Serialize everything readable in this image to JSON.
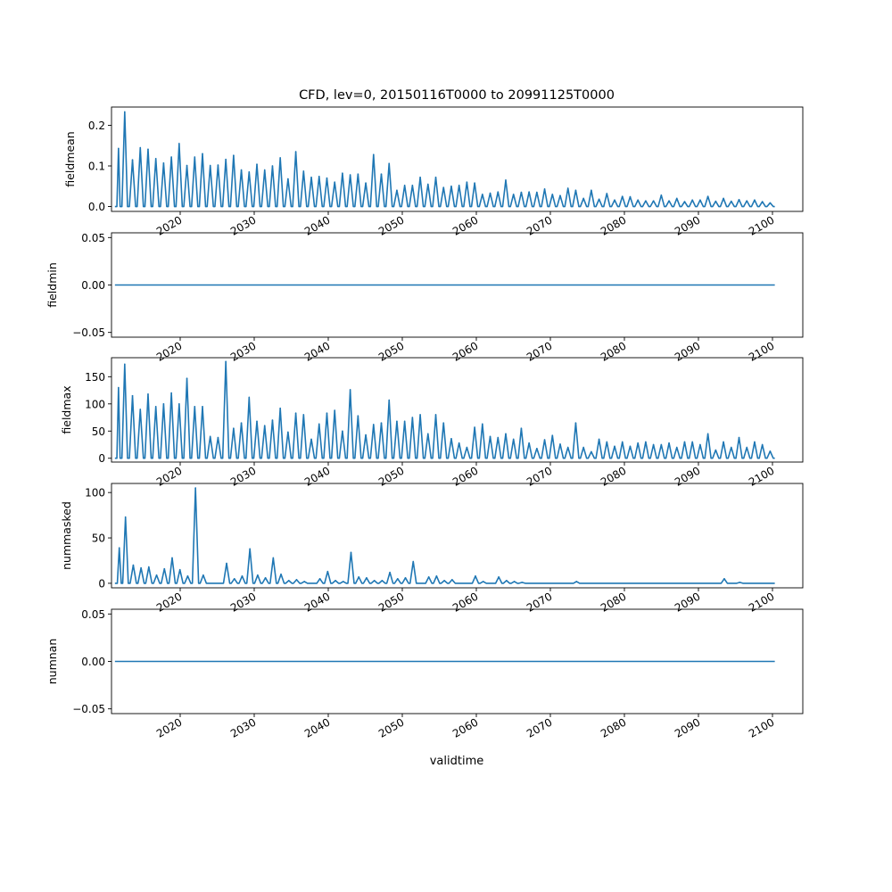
{
  "title": "CFD, lev=0, 20150116T0000 to 20991125T0000",
  "xlabel": "validtime",
  "line_color": "#1f77b4",
  "chart_data": [
    {
      "type": "line",
      "ylabel": "fieldmean",
      "xlim": [
        2014.6,
        2103.5
      ],
      "ylim": [
        -0.012,
        0.245
      ],
      "yticks": [
        0.0,
        0.1,
        0.2
      ],
      "ytick_labels": [
        "0.0",
        "0.1",
        "0.2"
      ],
      "xtick_labels": [
        "2020",
        "2030",
        "2040",
        "2050",
        "2060",
        "2070",
        "2080",
        "2090",
        "2100"
      ],
      "x_start": 2015.04,
      "x_end": 2099.9,
      "baseline": 0.0,
      "peaks": [
        {
          "x": 2015.5,
          "y": 0.143
        },
        {
          "x": 2016.3,
          "y": 0.233
        },
        {
          "x": 2017.3,
          "y": 0.115
        },
        {
          "x": 2018.3,
          "y": 0.145
        },
        {
          "x": 2019.3,
          "y": 0.141
        },
        {
          "x": 2020.3,
          "y": 0.118
        },
        {
          "x": 2021.3,
          "y": 0.107
        },
        {
          "x": 2022.3,
          "y": 0.122
        },
        {
          "x": 2023.3,
          "y": 0.155
        },
        {
          "x": 2024.3,
          "y": 0.101
        },
        {
          "x": 2025.3,
          "y": 0.122
        },
        {
          "x": 2026.3,
          "y": 0.13
        },
        {
          "x": 2027.3,
          "y": 0.101
        },
        {
          "x": 2028.3,
          "y": 0.102
        },
        {
          "x": 2029.3,
          "y": 0.116
        },
        {
          "x": 2030.3,
          "y": 0.126
        },
        {
          "x": 2031.3,
          "y": 0.09
        },
        {
          "x": 2032.3,
          "y": 0.085
        },
        {
          "x": 2033.3,
          "y": 0.104
        },
        {
          "x": 2034.3,
          "y": 0.09
        },
        {
          "x": 2035.3,
          "y": 0.1
        },
        {
          "x": 2036.3,
          "y": 0.12
        },
        {
          "x": 2037.3,
          "y": 0.068
        },
        {
          "x": 2038.3,
          "y": 0.135
        },
        {
          "x": 2039.3,
          "y": 0.087
        },
        {
          "x": 2040.3,
          "y": 0.072
        },
        {
          "x": 2041.3,
          "y": 0.074
        },
        {
          "x": 2042.3,
          "y": 0.07
        },
        {
          "x": 2043.3,
          "y": 0.06
        },
        {
          "x": 2044.3,
          "y": 0.082
        },
        {
          "x": 2045.3,
          "y": 0.078
        },
        {
          "x": 2046.3,
          "y": 0.08
        },
        {
          "x": 2047.3,
          "y": 0.058
        },
        {
          "x": 2048.3,
          "y": 0.128
        },
        {
          "x": 2049.3,
          "y": 0.08
        },
        {
          "x": 2050.3,
          "y": 0.106
        },
        {
          "x": 2051.3,
          "y": 0.04
        },
        {
          "x": 2052.3,
          "y": 0.052
        },
        {
          "x": 2053.3,
          "y": 0.052
        },
        {
          "x": 2054.3,
          "y": 0.072
        },
        {
          "x": 2055.3,
          "y": 0.055
        },
        {
          "x": 2056.3,
          "y": 0.072
        },
        {
          "x": 2057.3,
          "y": 0.047
        },
        {
          "x": 2058.3,
          "y": 0.05
        },
        {
          "x": 2059.3,
          "y": 0.052
        },
        {
          "x": 2060.3,
          "y": 0.06
        },
        {
          "x": 2061.3,
          "y": 0.058
        },
        {
          "x": 2062.3,
          "y": 0.03
        },
        {
          "x": 2063.3,
          "y": 0.033
        },
        {
          "x": 2064.3,
          "y": 0.036
        },
        {
          "x": 2065.3,
          "y": 0.065
        },
        {
          "x": 2066.3,
          "y": 0.03
        },
        {
          "x": 2067.3,
          "y": 0.035
        },
        {
          "x": 2068.3,
          "y": 0.036
        },
        {
          "x": 2069.3,
          "y": 0.035
        },
        {
          "x": 2070.3,
          "y": 0.043
        },
        {
          "x": 2071.3,
          "y": 0.03
        },
        {
          "x": 2072.3,
          "y": 0.027
        },
        {
          "x": 2073.3,
          "y": 0.045
        },
        {
          "x": 2074.3,
          "y": 0.04
        },
        {
          "x": 2075.3,
          "y": 0.02
        },
        {
          "x": 2076.3,
          "y": 0.04
        },
        {
          "x": 2077.3,
          "y": 0.018
        },
        {
          "x": 2078.3,
          "y": 0.032
        },
        {
          "x": 2079.3,
          "y": 0.016
        },
        {
          "x": 2080.3,
          "y": 0.025
        },
        {
          "x": 2081.3,
          "y": 0.024
        },
        {
          "x": 2082.3,
          "y": 0.016
        },
        {
          "x": 2083.3,
          "y": 0.014
        },
        {
          "x": 2084.3,
          "y": 0.014
        },
        {
          "x": 2085.3,
          "y": 0.028
        },
        {
          "x": 2086.3,
          "y": 0.014
        },
        {
          "x": 2087.3,
          "y": 0.02
        },
        {
          "x": 2088.3,
          "y": 0.012
        },
        {
          "x": 2089.3,
          "y": 0.016
        },
        {
          "x": 2090.3,
          "y": 0.016
        },
        {
          "x": 2091.3,
          "y": 0.025
        },
        {
          "x": 2092.3,
          "y": 0.013
        },
        {
          "x": 2093.3,
          "y": 0.02
        },
        {
          "x": 2094.3,
          "y": 0.013
        },
        {
          "x": 2095.3,
          "y": 0.017
        },
        {
          "x": 2096.3,
          "y": 0.014
        },
        {
          "x": 2097.3,
          "y": 0.016
        },
        {
          "x": 2098.3,
          "y": 0.012
        },
        {
          "x": 2099.3,
          "y": 0.009
        }
      ]
    },
    {
      "type": "line",
      "ylabel": "fieldmin",
      "xlim": [
        2014.6,
        2103.5
      ],
      "ylim": [
        -0.055,
        0.055
      ],
      "yticks": [
        -0.05,
        0.0,
        0.05
      ],
      "ytick_labels": [
        "−0.05",
        "0.00",
        "0.05"
      ],
      "xtick_labels": [
        "2020",
        "2030",
        "2040",
        "2050",
        "2060",
        "2070",
        "2080",
        "2090",
        "2100"
      ],
      "x_start": 2015.04,
      "x_end": 2099.9,
      "baseline": 0.0,
      "peaks": []
    },
    {
      "type": "line",
      "ylabel": "fieldmax",
      "xlim": [
        2014.6,
        2103.5
      ],
      "ylim": [
        -7,
        185
      ],
      "yticks": [
        0,
        50,
        100,
        150
      ],
      "ytick_labels": [
        "0",
        "50",
        "100",
        "150"
      ],
      "xtick_labels": [
        "2020",
        "2030",
        "2040",
        "2050",
        "2060",
        "2070",
        "2080",
        "2090",
        "2100"
      ],
      "x_start": 2015.04,
      "x_end": 2099.9,
      "baseline": 0.0,
      "peaks": [
        {
          "x": 2015.5,
          "y": 130
        },
        {
          "x": 2016.3,
          "y": 173
        },
        {
          "x": 2017.3,
          "y": 115
        },
        {
          "x": 2018.3,
          "y": 90
        },
        {
          "x": 2019.3,
          "y": 118
        },
        {
          "x": 2020.3,
          "y": 95
        },
        {
          "x": 2021.3,
          "y": 100
        },
        {
          "x": 2022.3,
          "y": 120
        },
        {
          "x": 2023.3,
          "y": 100
        },
        {
          "x": 2024.3,
          "y": 147
        },
        {
          "x": 2025.3,
          "y": 95
        },
        {
          "x": 2026.3,
          "y": 95
        },
        {
          "x": 2027.3,
          "y": 40
        },
        {
          "x": 2028.3,
          "y": 38
        },
        {
          "x": 2029.3,
          "y": 178
        },
        {
          "x": 2030.3,
          "y": 55
        },
        {
          "x": 2031.3,
          "y": 65
        },
        {
          "x": 2032.3,
          "y": 112
        },
        {
          "x": 2033.3,
          "y": 68
        },
        {
          "x": 2034.3,
          "y": 60
        },
        {
          "x": 2035.3,
          "y": 70
        },
        {
          "x": 2036.3,
          "y": 92
        },
        {
          "x": 2037.3,
          "y": 48
        },
        {
          "x": 2038.3,
          "y": 83
        },
        {
          "x": 2039.3,
          "y": 80
        },
        {
          "x": 2040.3,
          "y": 35
        },
        {
          "x": 2041.3,
          "y": 63
        },
        {
          "x": 2042.3,
          "y": 83
        },
        {
          "x": 2043.3,
          "y": 88
        },
        {
          "x": 2044.3,
          "y": 50
        },
        {
          "x": 2045.3,
          "y": 126
        },
        {
          "x": 2046.3,
          "y": 78
        },
        {
          "x": 2047.3,
          "y": 43
        },
        {
          "x": 2048.3,
          "y": 62
        },
        {
          "x": 2049.3,
          "y": 65
        },
        {
          "x": 2050.3,
          "y": 107
        },
        {
          "x": 2051.3,
          "y": 68
        },
        {
          "x": 2052.3,
          "y": 68
        },
        {
          "x": 2053.3,
          "y": 75
        },
        {
          "x": 2054.3,
          "y": 80
        },
        {
          "x": 2055.3,
          "y": 45
        },
        {
          "x": 2056.3,
          "y": 80
        },
        {
          "x": 2057.3,
          "y": 65
        },
        {
          "x": 2058.3,
          "y": 36
        },
        {
          "x": 2059.3,
          "y": 28
        },
        {
          "x": 2060.3,
          "y": 20
        },
        {
          "x": 2061.3,
          "y": 57
        },
        {
          "x": 2062.3,
          "y": 63
        },
        {
          "x": 2063.3,
          "y": 40
        },
        {
          "x": 2064.3,
          "y": 38
        },
        {
          "x": 2065.3,
          "y": 45
        },
        {
          "x": 2066.3,
          "y": 35
        },
        {
          "x": 2067.3,
          "y": 55
        },
        {
          "x": 2068.3,
          "y": 28
        },
        {
          "x": 2069.3,
          "y": 18
        },
        {
          "x": 2070.3,
          "y": 34
        },
        {
          "x": 2071.3,
          "y": 42
        },
        {
          "x": 2072.3,
          "y": 26
        },
        {
          "x": 2073.3,
          "y": 20
        },
        {
          "x": 2074.3,
          "y": 65
        },
        {
          "x": 2075.3,
          "y": 20
        },
        {
          "x": 2076.3,
          "y": 12
        },
        {
          "x": 2077.3,
          "y": 35
        },
        {
          "x": 2078.3,
          "y": 30
        },
        {
          "x": 2079.3,
          "y": 22
        },
        {
          "x": 2080.3,
          "y": 30
        },
        {
          "x": 2081.3,
          "y": 22
        },
        {
          "x": 2082.3,
          "y": 28
        },
        {
          "x": 2083.3,
          "y": 30
        },
        {
          "x": 2084.3,
          "y": 25
        },
        {
          "x": 2085.3,
          "y": 25
        },
        {
          "x": 2086.3,
          "y": 28
        },
        {
          "x": 2087.3,
          "y": 20
        },
        {
          "x": 2088.3,
          "y": 30
        },
        {
          "x": 2089.3,
          "y": 30
        },
        {
          "x": 2090.3,
          "y": 25
        },
        {
          "x": 2091.3,
          "y": 45
        },
        {
          "x": 2092.3,
          "y": 15
        },
        {
          "x": 2093.3,
          "y": 30
        },
        {
          "x": 2094.3,
          "y": 20
        },
        {
          "x": 2095.3,
          "y": 38
        },
        {
          "x": 2096.3,
          "y": 20
        },
        {
          "x": 2097.3,
          "y": 30
        },
        {
          "x": 2098.3,
          "y": 25
        },
        {
          "x": 2099.3,
          "y": 13
        }
      ]
    },
    {
      "type": "line",
      "ylabel": "nummasked",
      "xlim": [
        2014.6,
        2103.5
      ],
      "ylim": [
        -5,
        110
      ],
      "yticks": [
        0,
        50,
        100
      ],
      "ytick_labels": [
        "0",
        "50",
        "100"
      ],
      "xtick_labels": [
        "2020",
        "2030",
        "2040",
        "2050",
        "2060",
        "2070",
        "2080",
        "2090",
        "2100"
      ],
      "x_start": 2015.04,
      "x_end": 2099.9,
      "baseline": 0.0,
      "peaks": [
        {
          "x": 2015.6,
          "y": 39
        },
        {
          "x": 2016.4,
          "y": 73
        },
        {
          "x": 2017.4,
          "y": 20
        },
        {
          "x": 2018.4,
          "y": 17
        },
        {
          "x": 2019.4,
          "y": 18
        },
        {
          "x": 2020.4,
          "y": 9
        },
        {
          "x": 2021.4,
          "y": 16
        },
        {
          "x": 2022.4,
          "y": 28
        },
        {
          "x": 2023.4,
          "y": 15
        },
        {
          "x": 2024.4,
          "y": 8
        },
        {
          "x": 2025.4,
          "y": 105
        },
        {
          "x": 2026.4,
          "y": 9
        },
        {
          "x": 2029.4,
          "y": 22
        },
        {
          "x": 2030.4,
          "y": 5
        },
        {
          "x": 2031.4,
          "y": 8
        },
        {
          "x": 2032.4,
          "y": 38
        },
        {
          "x": 2033.4,
          "y": 9
        },
        {
          "x": 2034.4,
          "y": 6
        },
        {
          "x": 2035.4,
          "y": 28
        },
        {
          "x": 2036.4,
          "y": 10
        },
        {
          "x": 2037.4,
          "y": 3
        },
        {
          "x": 2038.4,
          "y": 4
        },
        {
          "x": 2039.4,
          "y": 2
        },
        {
          "x": 2041.4,
          "y": 5
        },
        {
          "x": 2042.4,
          "y": 13
        },
        {
          "x": 2043.4,
          "y": 3
        },
        {
          "x": 2044.4,
          "y": 2
        },
        {
          "x": 2045.4,
          "y": 34
        },
        {
          "x": 2046.4,
          "y": 7
        },
        {
          "x": 2047.4,
          "y": 6
        },
        {
          "x": 2048.4,
          "y": 3
        },
        {
          "x": 2049.4,
          "y": 3
        },
        {
          "x": 2050.4,
          "y": 12
        },
        {
          "x": 2051.4,
          "y": 5
        },
        {
          "x": 2052.4,
          "y": 6
        },
        {
          "x": 2053.4,
          "y": 24
        },
        {
          "x": 2055.4,
          "y": 7
        },
        {
          "x": 2056.4,
          "y": 8
        },
        {
          "x": 2057.4,
          "y": 3
        },
        {
          "x": 2058.4,
          "y": 4
        },
        {
          "x": 2061.4,
          "y": 8
        },
        {
          "x": 2062.4,
          "y": 2
        },
        {
          "x": 2064.4,
          "y": 7
        },
        {
          "x": 2065.4,
          "y": 3
        },
        {
          "x": 2066.4,
          "y": 2
        },
        {
          "x": 2067.4,
          "y": 1
        },
        {
          "x": 2074.4,
          "y": 2
        },
        {
          "x": 2093.4,
          "y": 5
        },
        {
          "x": 2095.4,
          "y": 1
        }
      ]
    },
    {
      "type": "line",
      "ylabel": "numnan",
      "xlim": [
        2014.6,
        2103.5
      ],
      "ylim": [
        -0.055,
        0.055
      ],
      "yticks": [
        -0.05,
        0.0,
        0.05
      ],
      "ytick_labels": [
        "−0.05",
        "0.00",
        "0.05"
      ],
      "xtick_labels": [
        "2020",
        "2030",
        "2040",
        "2050",
        "2060",
        "2070",
        "2080",
        "2090",
        "2100"
      ],
      "x_start": 2015.04,
      "x_end": 2099.9,
      "baseline": 0.0,
      "peaks": []
    }
  ]
}
